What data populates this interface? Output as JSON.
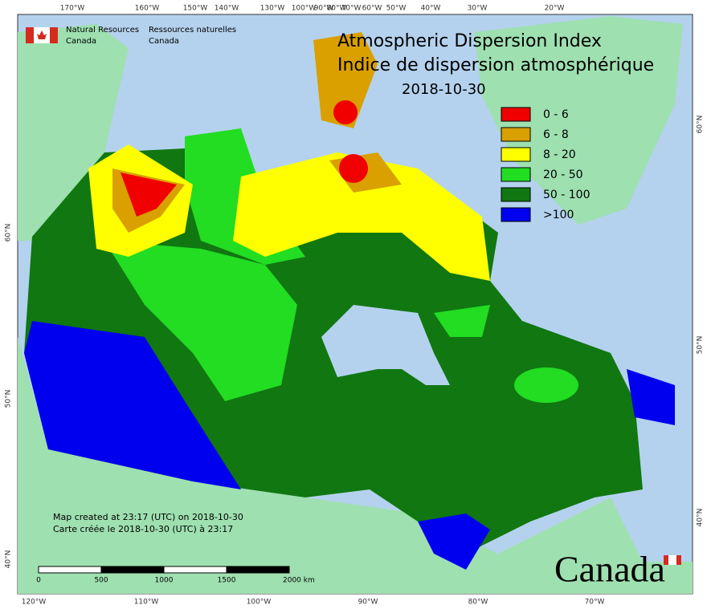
{
  "header": {
    "agency_en": [
      "Natural Resources",
      "Canada"
    ],
    "agency_fr": [
      "Ressources naturelles",
      "Canada"
    ],
    "title_en": "Atmospheric Dispersion Index",
    "title_fr": "Indice de dispersion atmosphérique",
    "date": "2018-10-30"
  },
  "legend": [
    {
      "label": "0 - 6",
      "color": "#f00000"
    },
    {
      "label": "6 - 8",
      "color": "#d9a000"
    },
    {
      "label": "8 - 20",
      "color": "#ffff00"
    },
    {
      "label": "20 - 50",
      "color": "#22dd22"
    },
    {
      "label": "50 - 100",
      "color": "#117711"
    },
    {
      "label": ">100",
      "color": "#0000ee"
    }
  ],
  "graticule": {
    "top": [
      "170°W",
      "160°W",
      "150°W",
      "140°W",
      "130°W",
      "100°W",
      "90°W",
      "80°W",
      "70°W",
      "60°W",
      "50°W",
      "40°W",
      "30°W",
      "20°W"
    ],
    "bottom": [
      "120°W",
      "110°W",
      "100°W",
      "90°W",
      "80°W",
      "70°W"
    ],
    "left": [
      "60°N",
      "50°N",
      "40°N"
    ],
    "right": [
      "60°N",
      "50°N",
      "40°N"
    ]
  },
  "footer": {
    "created_en": "Map created at 23:17 (UTC) on 2018-10-30",
    "created_fr": "Carte créée le 2018-10-30 (UTC) à 23:17",
    "scale": [
      "0",
      "500",
      "1000",
      "1500",
      "2000  km"
    ],
    "wordmark": "Canada"
  }
}
